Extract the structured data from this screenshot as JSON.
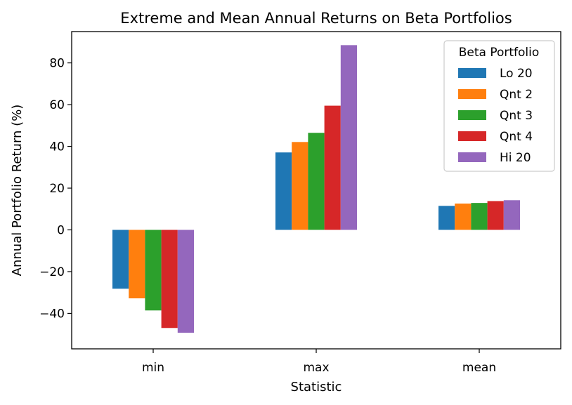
{
  "chart_data": {
    "type": "bar",
    "title": "Extreme and Mean Annual Returns on Beta Portfolios",
    "xlabel": "Statistic",
    "ylabel": "Annual Portfolio Return (%)",
    "categories": [
      "min",
      "max",
      "mean"
    ],
    "ylim": [
      -57,
      95
    ],
    "yticks": [
      -40,
      -20,
      0,
      20,
      40,
      60,
      80
    ],
    "ytick_labels": [
      "−40",
      "−20",
      "0",
      "20",
      "40",
      "60",
      "80"
    ],
    "grid": false,
    "legend": {
      "title": "Beta Portfolio",
      "position": "top-right"
    },
    "series": [
      {
        "name": "Lo 20",
        "color": "#1f77b4",
        "values": [
          -28.2,
          37.1,
          11.5
        ]
      },
      {
        "name": "Qnt 2",
        "color": "#ff7f0e",
        "values": [
          -32.8,
          42.1,
          12.6
        ]
      },
      {
        "name": "Qnt 3",
        "color": "#2ca02c",
        "values": [
          -38.6,
          46.5,
          12.9
        ]
      },
      {
        "name": "Qnt 4",
        "color": "#d62728",
        "values": [
          -47.0,
          59.5,
          13.8
        ]
      },
      {
        "name": "Hi 20",
        "color": "#9467bd",
        "values": [
          -49.3,
          88.5,
          14.2
        ]
      }
    ]
  }
}
